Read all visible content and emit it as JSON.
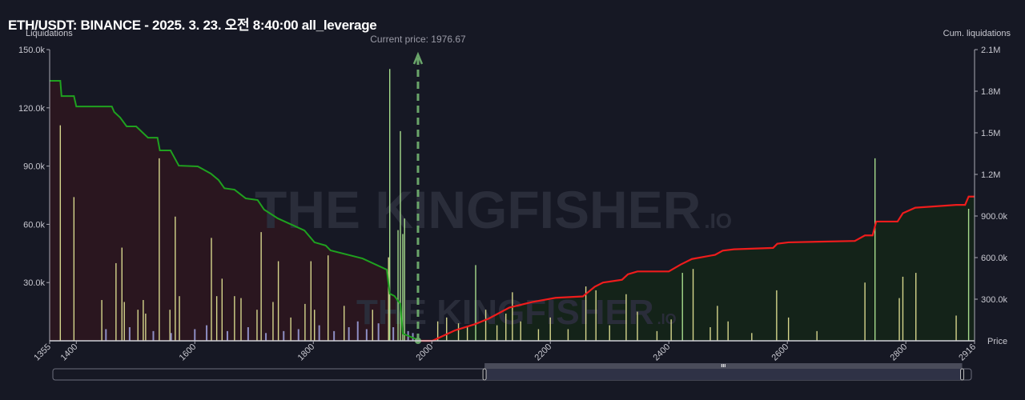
{
  "title": "ETH/USDT: BINANCE - 2025. 3. 23. 오전 8:40:00 all_leverage",
  "watermark": {
    "main": "THE KINGFISHER",
    "suffix": ".IO"
  },
  "chart_data": {
    "type": "bar",
    "title": "ETH/USDT: BINANCE - 2025. 3. 23. 오전 8:40:00 all_leverage",
    "ylabel": "Liquidations",
    "y2label": "Cum. liquidations",
    "xlabel": "Price",
    "current_price_label": "Current price: 1976.67",
    "current_price": 1976.67,
    "xlim": [
      1355,
      2916
    ],
    "ylim": [
      0,
      150000
    ],
    "y2lim": [
      0,
      2100000
    ],
    "x_ticks": [
      1355,
      1400,
      1600,
      1800,
      2000,
      2200,
      2400,
      2600,
      2800,
      2916
    ],
    "y_ticks": [
      {
        "v": 30000,
        "label": "30.0k"
      },
      {
        "v": 60000,
        "label": "60.0k"
      },
      {
        "v": 90000,
        "label": "90.0k"
      },
      {
        "v": 120000,
        "label": "120.0k"
      },
      {
        "v": 150000,
        "label": "150.0k"
      }
    ],
    "y2_ticks": [
      {
        "v": 300000,
        "label": "300.0k"
      },
      {
        "v": 600000,
        "label": "600.0k"
      },
      {
        "v": 900000,
        "label": "900.0k"
      },
      {
        "v": 1200000,
        "label": "1.2M"
      },
      {
        "v": 1500000,
        "label": "1.5M"
      },
      {
        "v": 1800000,
        "label": "1.8M"
      },
      {
        "v": 2100000,
        "label": "2.1M"
      }
    ],
    "colors": {
      "bar": "#d6d68c",
      "bar_large": "#a6dc8c",
      "bar_small": "#8e8ec4",
      "long_cum": "#1fa11f",
      "short_cum": "#ee1c1c",
      "long_fill": "#2a161f",
      "short_fill": "#142319",
      "current_price": "#6aa56a"
    },
    "bars": [
      [
        1373,
        111,
        "y"
      ],
      [
        1396,
        74,
        "y"
      ],
      [
        1443,
        21,
        "y"
      ],
      [
        1467,
        40,
        "y"
      ],
      [
        1477,
        48,
        "y"
      ],
      [
        1481,
        20,
        "y"
      ],
      [
        1504,
        16,
        "y"
      ],
      [
        1513,
        21,
        "y"
      ],
      [
        1517,
        14,
        "y"
      ],
      [
        1540,
        94,
        "y"
      ],
      [
        1558,
        16,
        "y"
      ],
      [
        1567,
        64,
        "y"
      ],
      [
        1574,
        23,
        "y"
      ],
      [
        1628,
        53,
        "y"
      ],
      [
        1637,
        23,
        "y"
      ],
      [
        1646,
        32,
        "y"
      ],
      [
        1667,
        23,
        "y"
      ],
      [
        1678,
        22,
        "y"
      ],
      [
        1705,
        16,
        "y"
      ],
      [
        1712,
        56,
        "y"
      ],
      [
        1732,
        20,
        "y"
      ],
      [
        1741,
        41,
        "y"
      ],
      [
        1762,
        12,
        "y"
      ],
      [
        1786,
        19,
        "y"
      ],
      [
        1796,
        41,
        "y"
      ],
      [
        1802,
        16,
        "y"
      ],
      [
        1825,
        44,
        "y"
      ],
      [
        1852,
        18,
        "y"
      ],
      [
        1900,
        16,
        "y"
      ],
      [
        1927,
        43,
        "y"
      ],
      [
        1929,
        140,
        "g"
      ],
      [
        1943,
        57,
        "g"
      ],
      [
        1947,
        108,
        "g"
      ],
      [
        1951,
        55,
        "g"
      ],
      [
        1954,
        63,
        "g"
      ],
      [
        1450,
        6,
        "s"
      ],
      [
        1490,
        7,
        "s"
      ],
      [
        1530,
        5,
        "s"
      ],
      [
        1560,
        4,
        "s"
      ],
      [
        1600,
        6,
        "s"
      ],
      [
        1620,
        8,
        "s"
      ],
      [
        1655,
        5,
        "s"
      ],
      [
        1690,
        7,
        "s"
      ],
      [
        1720,
        4,
        "s"
      ],
      [
        1750,
        5,
        "s"
      ],
      [
        1775,
        6,
        "s"
      ],
      [
        1810,
        8,
        "s"
      ],
      [
        1835,
        5,
        "s"
      ],
      [
        1860,
        7,
        "s"
      ],
      [
        1875,
        10,
        "s"
      ],
      [
        1890,
        6,
        "s"
      ],
      [
        1910,
        9,
        "s"
      ],
      [
        1935,
        7,
        "s"
      ],
      [
        1960,
        5,
        "s"
      ],
      [
        1968,
        4,
        "s"
      ],
      [
        2010,
        10,
        "y"
      ],
      [
        2025,
        12,
        "y"
      ],
      [
        2045,
        9,
        "y"
      ],
      [
        2060,
        7,
        "y"
      ],
      [
        2074,
        39,
        "g"
      ],
      [
        2091,
        16,
        "y"
      ],
      [
        2110,
        8,
        "y"
      ],
      [
        2125,
        14,
        "y"
      ],
      [
        2136,
        25,
        "y"
      ],
      [
        2150,
        10,
        "y"
      ],
      [
        2180,
        6,
        "y"
      ],
      [
        2200,
        12,
        "y"
      ],
      [
        2230,
        6,
        "y"
      ],
      [
        2260,
        28,
        "y"
      ],
      [
        2277,
        26,
        "y"
      ],
      [
        2300,
        8,
        "y"
      ],
      [
        2328,
        24,
        "y"
      ],
      [
        2347,
        15,
        "y"
      ],
      [
        2380,
        5,
        "y"
      ],
      [
        2404,
        11,
        "y"
      ],
      [
        2423,
        35,
        "g"
      ],
      [
        2441,
        37,
        "y"
      ],
      [
        2470,
        7,
        "y"
      ],
      [
        2482,
        18,
        "y"
      ],
      [
        2500,
        10,
        "y"
      ],
      [
        2540,
        4,
        "y"
      ],
      [
        2582,
        26,
        "y"
      ],
      [
        2602,
        12,
        "y"
      ],
      [
        2650,
        5,
        "y"
      ],
      [
        2731,
        30,
        "y"
      ],
      [
        2748,
        94,
        "g"
      ],
      [
        2789,
        22,
        "y"
      ],
      [
        2795,
        33,
        "y"
      ],
      [
        2817,
        35,
        "y"
      ],
      [
        2885,
        13,
        "y"
      ],
      [
        2906,
        68,
        "g"
      ]
    ],
    "long_cumulative": [
      [
        1355,
        1.875
      ],
      [
        1373,
        1.875
      ],
      [
        1375,
        1.765
      ],
      [
        1396,
        1.765
      ],
      [
        1400,
        1.69
      ],
      [
        1460,
        1.69
      ],
      [
        1464,
        1.65
      ],
      [
        1474,
        1.61
      ],
      [
        1485,
        1.546
      ],
      [
        1501,
        1.546
      ],
      [
        1521,
        1.465
      ],
      [
        1537,
        1.465
      ],
      [
        1541,
        1.373
      ],
      [
        1559,
        1.373
      ],
      [
        1573,
        1.263
      ],
      [
        1605,
        1.258
      ],
      [
        1627,
        1.206
      ],
      [
        1640,
        1.16
      ],
      [
        1650,
        1.1
      ],
      [
        1667,
        1.09
      ],
      [
        1686,
        1.027
      ],
      [
        1706,
        1.015
      ],
      [
        1717,
        0.946
      ],
      [
        1740,
        0.883
      ],
      [
        1785,
        0.796
      ],
      [
        1802,
        0.71
      ],
      [
        1821,
        0.687
      ],
      [
        1829,
        0.652
      ],
      [
        1883,
        0.594
      ],
      [
        1924,
        0.513
      ],
      [
        1929,
        0.34
      ],
      [
        1937,
        0.323
      ],
      [
        1947,
        0.265
      ],
      [
        1951,
        0.052
      ],
      [
        1977,
        0.006
      ]
    ],
    "short_cumulative": [
      [
        1974,
        0
      ],
      [
        2001,
        0
      ],
      [
        2039,
        0.075
      ],
      [
        2073,
        0.12
      ],
      [
        2096,
        0.16
      ],
      [
        2131,
        0.24
      ],
      [
        2170,
        0.28
      ],
      [
        2209,
        0.31
      ],
      [
        2255,
        0.32
      ],
      [
        2275,
        0.39
      ],
      [
        2289,
        0.42
      ],
      [
        2321,
        0.44
      ],
      [
        2331,
        0.48
      ],
      [
        2347,
        0.5
      ],
      [
        2400,
        0.5
      ],
      [
        2420,
        0.55
      ],
      [
        2439,
        0.59
      ],
      [
        2478,
        0.62
      ],
      [
        2491,
        0.65
      ],
      [
        2510,
        0.66
      ],
      [
        2576,
        0.67
      ],
      [
        2583,
        0.7
      ],
      [
        2602,
        0.71
      ],
      [
        2714,
        0.72
      ],
      [
        2731,
        0.76
      ],
      [
        2744,
        0.76
      ],
      [
        2750,
        0.86
      ],
      [
        2786,
        0.86
      ],
      [
        2795,
        0.92
      ],
      [
        2816,
        0.96
      ],
      [
        2885,
        0.98
      ],
      [
        2900,
        0.98
      ],
      [
        2906,
        1.04
      ],
      [
        2914,
        1.04
      ]
    ],
    "cumulative_units": "millions",
    "bar_units": "thousands",
    "zoom_range": [
      0.47,
      0.99
    ]
  }
}
